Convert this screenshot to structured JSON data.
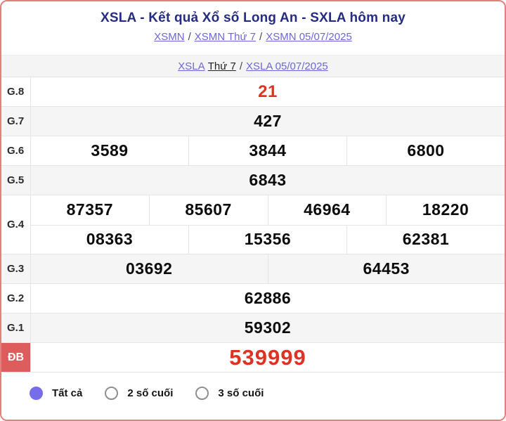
{
  "page": {
    "title": "XSLA - Kết quả Xổ số Long An - SXLA hôm nay"
  },
  "breadcrumb_xsmn": {
    "link_region": "XSMN",
    "sep1": "/",
    "link_day": "XSMN Thứ 7",
    "sep2": "/",
    "link_date": "XSMN 05/07/2025"
  },
  "breadcrumb_xsla": {
    "link_station": "XSLA",
    "day": "Thứ 7",
    "sep": "/",
    "link_date": "XSLA 05/07/2025"
  },
  "results": {
    "rows": [
      {
        "label": "G.8",
        "cells": [
          "21"
        ],
        "highlight": "red"
      },
      {
        "label": "G.7",
        "cells": [
          "427"
        ]
      },
      {
        "label": "G.6",
        "cells": [
          "3589",
          "3844",
          "6800"
        ]
      },
      {
        "label": "G.5",
        "cells": [
          "6843"
        ]
      },
      {
        "label": "G.4",
        "lines": [
          [
            "87357",
            "85607",
            "46964",
            "18220"
          ],
          [
            "08363",
            "15356",
            "62381"
          ]
        ]
      },
      {
        "label": "G.3",
        "cells": [
          "03692",
          "64453"
        ]
      },
      {
        "label": "G.2",
        "cells": [
          "62886"
        ]
      },
      {
        "label": "G.1",
        "cells": [
          "59302"
        ]
      },
      {
        "label": "ĐB",
        "cells": [
          "539999"
        ],
        "highlight": "red-big"
      }
    ]
  },
  "filters": {
    "options": [
      {
        "label": "Tất cả",
        "selected": true
      },
      {
        "label": "2 số cuối",
        "selected": false
      },
      {
        "label": "3 số cuối",
        "selected": false
      }
    ]
  },
  "colors": {
    "frame_border": "#e3807b",
    "title_text": "#272c83",
    "link_text": "#6d66d8",
    "number_red": "#dc3424",
    "db_label_bg": "#dd5c5c",
    "radio_selected": "#766de8",
    "row_alt_bg": "#f5f5f5"
  }
}
